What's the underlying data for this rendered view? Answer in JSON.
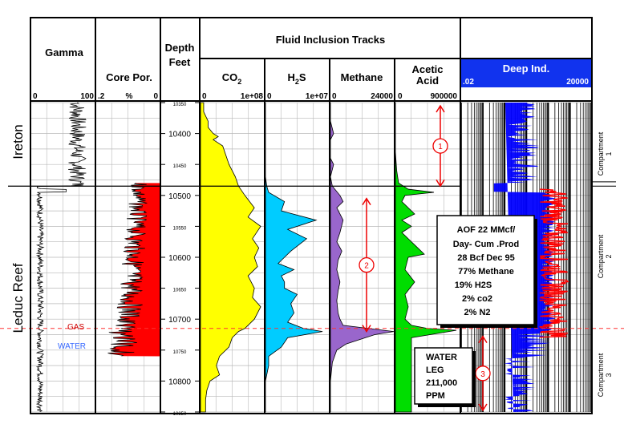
{
  "chart_data": {
    "type": "line",
    "title": "Fluid Inclusion Tracks",
    "depth": {
      "label_1": "Depth",
      "label_2": "Feet",
      "min": 10350,
      "max": 10850,
      "ticks": [
        "10350",
        "10400",
        "10450",
        "10500",
        "10550",
        "10600",
        "10650",
        "10700",
        "10750",
        "10800",
        "10850"
      ]
    },
    "tracks": {
      "gamma": {
        "name": "Gamma",
        "min": "0",
        "max": "100"
      },
      "core_por": {
        "name": "Core Por.",
        "left": ".2",
        "unit": "%",
        "right": "0"
      },
      "co2": {
        "name": "CO",
        "sub": "2",
        "min": "0",
        "max": "1e+08"
      },
      "h2s": {
        "name": "H",
        "sub": "2",
        "name_end": "S",
        "min": "0",
        "max": "1e+07"
      },
      "methane": {
        "name": "Methane",
        "min": "0",
        "max": "24000"
      },
      "acetic": {
        "name_1": "Acetic",
        "name_2": "Acid",
        "min": "0",
        "max": "900000"
      },
      "deep_ind": {
        "name": "Deep Ind.",
        "min": ".02",
        "max": "20000"
      }
    },
    "formations": [
      "Ireton",
      "Leduc Reef"
    ],
    "contacts": {
      "gas": "GAS",
      "water": "WATER",
      "gas_water_depth": 10715
    },
    "compartments": [
      {
        "label": "Compartment",
        "num": "1",
        "top": 10350,
        "base": 10485,
        "marker": "1"
      },
      {
        "label": "Compartment",
        "num": "2",
        "top": 10485,
        "base": 10730,
        "marker": "2"
      },
      {
        "label": "Compartment",
        "num": "3",
        "top": 10730,
        "base": 10850,
        "marker": "3"
      }
    ],
    "annotations": {
      "aof": [
        "AOF 22 MMcf/",
        "Day- Cum .Prod",
        "28 Bcf Dec 95",
        "77% Methane",
        "19% H2S",
        "2% co2",
        "2% N2"
      ],
      "water": [
        "WATER",
        "LEG",
        "211,000",
        "PPM"
      ]
    },
    "series": [
      {
        "name": "CO2",
        "color": "#ffff00",
        "points": [
          [
            10350,
            0.05
          ],
          [
            10365,
            0.05
          ],
          [
            10380,
            0.12
          ],
          [
            10390,
            0.12
          ],
          [
            10400,
            0.2
          ],
          [
            10405,
            0.28
          ],
          [
            10410,
            0.2
          ],
          [
            10420,
            0.35
          ],
          [
            10435,
            0.4
          ],
          [
            10450,
            0.45
          ],
          [
            10470,
            0.55
          ],
          [
            10485,
            0.6
          ],
          [
            10500,
            0.7
          ],
          [
            10520,
            0.85
          ],
          [
            10535,
            0.75
          ],
          [
            10550,
            0.95
          ],
          [
            10570,
            0.82
          ],
          [
            10585,
            0.92
          ],
          [
            10600,
            0.85
          ],
          [
            10615,
            0.9
          ],
          [
            10630,
            0.75
          ],
          [
            10650,
            0.85
          ],
          [
            10665,
            0.82
          ],
          [
            10680,
            0.95
          ],
          [
            10700,
            0.85
          ],
          [
            10715,
            0.7
          ],
          [
            10720,
            0.6
          ],
          [
            10730,
            0.5
          ],
          [
            10745,
            0.45
          ],
          [
            10760,
            0.3
          ],
          [
            10775,
            0.25
          ],
          [
            10790,
            0.3
          ],
          [
            10800,
            0.15
          ],
          [
            10815,
            0.1
          ],
          [
            10830,
            0.08
          ],
          [
            10850,
            0.08
          ]
        ]
      },
      {
        "name": "H2S",
        "color": "#00ccff",
        "points": [
          [
            10350,
            0.0
          ],
          [
            10380,
            0.0
          ],
          [
            10410,
            0.0
          ],
          [
            10440,
            0.0
          ],
          [
            10470,
            0.0
          ],
          [
            10485,
            0.02
          ],
          [
            10495,
            0.05
          ],
          [
            10510,
            0.3
          ],
          [
            10525,
            0.25
          ],
          [
            10540,
            0.8
          ],
          [
            10555,
            0.35
          ],
          [
            10570,
            0.65
          ],
          [
            10590,
            0.4
          ],
          [
            10600,
            0.3
          ],
          [
            10610,
            0.2
          ],
          [
            10620,
            0.45
          ],
          [
            10630,
            0.25
          ],
          [
            10640,
            0.3
          ],
          [
            10650,
            0.3
          ],
          [
            10660,
            0.5
          ],
          [
            10675,
            0.4
          ],
          [
            10690,
            0.45
          ],
          [
            10705,
            0.35
          ],
          [
            10715,
            0.6
          ],
          [
            10720,
            0.9
          ],
          [
            10730,
            0.35
          ],
          [
            10745,
            0.25
          ],
          [
            10760,
            0.05
          ],
          [
            10775,
            0.05
          ],
          [
            10800,
            0.0
          ],
          [
            10850,
            0.0
          ]
        ]
      },
      {
        "name": "Methane",
        "color": "#9966cc",
        "points": [
          [
            10350,
            0.0
          ],
          [
            10380,
            0.0
          ],
          [
            10400,
            0.05
          ],
          [
            10410,
            0.0
          ],
          [
            10440,
            0.0
          ],
          [
            10450,
            0.05
          ],
          [
            10470,
            0.0
          ],
          [
            10485,
            0.03
          ],
          [
            10500,
            0.15
          ],
          [
            10510,
            0.2
          ],
          [
            10520,
            0.1
          ],
          [
            10540,
            0.2
          ],
          [
            10560,
            0.15
          ],
          [
            10575,
            0.1
          ],
          [
            10590,
            0.18
          ],
          [
            10605,
            0.12
          ],
          [
            10620,
            0.1
          ],
          [
            10640,
            0.15
          ],
          [
            10655,
            0.12
          ],
          [
            10670,
            0.1
          ],
          [
            10690,
            0.12
          ],
          [
            10700,
            0.15
          ],
          [
            10710,
            0.2
          ],
          [
            10715,
            0.6
          ],
          [
            10720,
            1.0
          ],
          [
            10725,
            0.7
          ],
          [
            10740,
            0.25
          ],
          [
            10750,
            0.1
          ],
          [
            10770,
            0.03
          ],
          [
            10800,
            0.0
          ],
          [
            10850,
            0.0
          ]
        ]
      },
      {
        "name": "Acetic Acid",
        "color": "#00dd00",
        "points": [
          [
            10350,
            0.0
          ],
          [
            10400,
            0.0
          ],
          [
            10430,
            0.0
          ],
          [
            10460,
            0.02
          ],
          [
            10480,
            0.05
          ],
          [
            10490,
            0.2
          ],
          [
            10495,
            0.6
          ],
          [
            10500,
            0.15
          ],
          [
            10510,
            0.1
          ],
          [
            10530,
            0.3
          ],
          [
            10540,
            0.1
          ],
          [
            10550,
            0.25
          ],
          [
            10560,
            0.1
          ],
          [
            10580,
            0.3
          ],
          [
            10595,
            0.45
          ],
          [
            10600,
            0.2
          ],
          [
            10620,
            0.15
          ],
          [
            10640,
            0.3
          ],
          [
            10660,
            0.15
          ],
          [
            10680,
            0.2
          ],
          [
            10700,
            0.15
          ],
          [
            10710,
            0.25
          ],
          [
            10715,
            0.5
          ],
          [
            10718,
            0.95
          ],
          [
            10730,
            0.25
          ],
          [
            10750,
            0.25
          ],
          [
            10800,
            0.25
          ],
          [
            10850,
            0.25
          ]
        ]
      }
    ]
  }
}
